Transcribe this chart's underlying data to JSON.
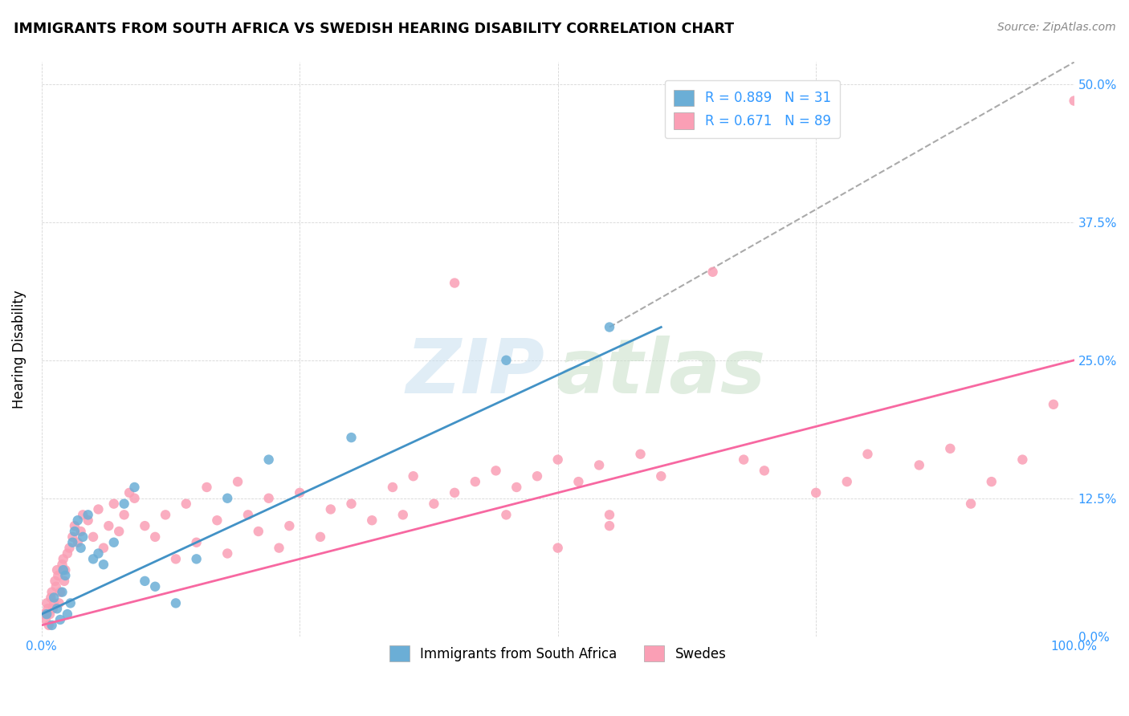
{
  "title": "IMMIGRANTS FROM SOUTH AFRICA VS SWEDISH HEARING DISABILITY CORRELATION CHART",
  "source": "Source: ZipAtlas.com",
  "ylabel": "Hearing Disability",
  "yticks": [
    "0.0%",
    "12.5%",
    "25.0%",
    "37.5%",
    "50.0%"
  ],
  "ytick_vals": [
    0.0,
    12.5,
    25.0,
    37.5,
    50.0
  ],
  "xlim": [
    0.0,
    100.0
  ],
  "ylim": [
    0.0,
    52.0
  ],
  "legend_blue_label": "R = 0.889   N = 31",
  "legend_pink_label": "R = 0.671   N = 89",
  "legend_bottom_blue": "Immigrants from South Africa",
  "legend_bottom_pink": "Swedes",
  "blue_color": "#6baed6",
  "pink_color": "#fa9fb5",
  "blue_line_color": "#4292c6",
  "pink_line_color": "#f768a1",
  "dashed_line_color": "#aaaaaa",
  "blue_scatter_x": [
    0.5,
    1.0,
    1.2,
    1.5,
    1.8,
    2.0,
    2.1,
    2.3,
    2.5,
    2.8,
    3.0,
    3.2,
    3.5,
    3.8,
    4.0,
    4.5,
    5.0,
    5.5,
    6.0,
    7.0,
    8.0,
    9.0,
    10.0,
    11.0,
    13.0,
    15.0,
    18.0,
    22.0,
    30.0,
    45.0,
    55.0
  ],
  "blue_scatter_y": [
    2.0,
    1.0,
    3.5,
    2.5,
    1.5,
    4.0,
    6.0,
    5.5,
    2.0,
    3.0,
    8.5,
    9.5,
    10.5,
    8.0,
    9.0,
    11.0,
    7.0,
    7.5,
    6.5,
    8.5,
    12.0,
    13.5,
    5.0,
    4.5,
    3.0,
    7.0,
    12.5,
    16.0,
    18.0,
    25.0,
    28.0
  ],
  "pink_scatter_x": [
    0.2,
    0.4,
    0.5,
    0.6,
    0.7,
    0.8,
    0.9,
    1.0,
    1.1,
    1.2,
    1.3,
    1.4,
    1.5,
    1.6,
    1.7,
    1.8,
    2.0,
    2.1,
    2.2,
    2.3,
    2.5,
    2.7,
    3.0,
    3.2,
    3.5,
    3.8,
    4.0,
    4.5,
    5.0,
    5.5,
    6.0,
    6.5,
    7.0,
    7.5,
    8.0,
    8.5,
    9.0,
    10.0,
    11.0,
    12.0,
    13.0,
    14.0,
    15.0,
    16.0,
    17.0,
    18.0,
    19.0,
    20.0,
    21.0,
    22.0,
    23.0,
    24.0,
    25.0,
    27.0,
    28.0,
    30.0,
    32.0,
    34.0,
    35.0,
    36.0,
    38.0,
    40.0,
    42.0,
    44.0,
    46.0,
    48.0,
    50.0,
    52.0,
    54.0,
    55.0,
    58.0,
    60.0,
    65.0,
    68.0,
    70.0,
    75.0,
    78.0,
    80.0,
    85.0,
    88.0,
    90.0,
    92.0,
    95.0,
    98.0,
    100.0,
    40.0,
    45.0,
    50.0,
    55.0
  ],
  "pink_scatter_y": [
    2.0,
    1.5,
    3.0,
    2.5,
    1.0,
    2.0,
    3.5,
    4.0,
    2.5,
    3.0,
    5.0,
    4.5,
    6.0,
    5.5,
    3.0,
    4.0,
    6.5,
    7.0,
    5.0,
    6.0,
    7.5,
    8.0,
    9.0,
    10.0,
    8.5,
    9.5,
    11.0,
    10.5,
    9.0,
    11.5,
    8.0,
    10.0,
    12.0,
    9.5,
    11.0,
    13.0,
    12.5,
    10.0,
    9.0,
    11.0,
    7.0,
    12.0,
    8.5,
    13.5,
    10.5,
    7.5,
    14.0,
    11.0,
    9.5,
    12.5,
    8.0,
    10.0,
    13.0,
    9.0,
    11.5,
    12.0,
    10.5,
    13.5,
    11.0,
    14.5,
    12.0,
    13.0,
    14.0,
    15.0,
    13.5,
    14.5,
    16.0,
    14.0,
    15.5,
    11.0,
    16.5,
    14.5,
    33.0,
    16.0,
    15.0,
    13.0,
    14.0,
    16.5,
    15.5,
    17.0,
    12.0,
    14.0,
    16.0,
    21.0,
    48.5,
    32.0,
    11.0,
    8.0,
    10.0
  ],
  "blue_line_x": [
    0,
    60
  ],
  "blue_line_y": [
    2.0,
    28.0
  ],
  "pink_line_x": [
    0,
    100
  ],
  "pink_line_y": [
    1.0,
    25.0
  ],
  "dash_line_x": [
    55,
    100
  ],
  "dash_line_y": [
    28.0,
    52.0
  ]
}
